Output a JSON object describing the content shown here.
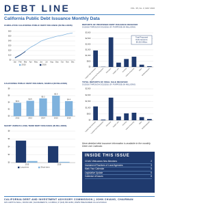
{
  "header": {
    "title": "DEBT LINE",
    "issue": "VOL. 35, No. 3, MAY 2016",
    "headline": "California Public Debt Issuance Monthly Data"
  },
  "chart_data": [
    {
      "type": "line",
      "title": "CUMULATIVE CALIFORNIA PUBLIC DEBT ISSUANCE (IN BILLIONS)",
      "categories": [
        "Jan",
        "Feb",
        "Mar",
        "Apr",
        "May",
        "Jun",
        "Jul",
        "Aug",
        "Sep",
        "Oct",
        "Nov",
        "Dec"
      ],
      "series": [
        {
          "name": "2015",
          "color": "#7fb2dd",
          "values": [
            4,
            10,
            19,
            27,
            33,
            40,
            44,
            47,
            50,
            52,
            55,
            57
          ]
        },
        {
          "name": "2016",
          "color": "#1f3a6e",
          "values": [
            5,
            11,
            18,
            null,
            null,
            null,
            null,
            null,
            null,
            null,
            null,
            null
          ]
        }
      ],
      "ylim": [
        0,
        60
      ],
      "yticks": [
        {
          "value": 0,
          "label": "$0"
        },
        {
          "value": 10,
          "label": "$10"
        },
        {
          "value": 20,
          "label": "$20"
        },
        {
          "value": 30,
          "label": "$30"
        },
        {
          "value": 40,
          "label": "$40"
        },
        {
          "value": 50,
          "label": "$50"
        },
        {
          "value": 60,
          "label": "$60"
        }
      ],
      "grid": true
    },
    {
      "type": "bar",
      "title": "REPORTS OF PROPOSED DEBT ISSUANCE RECEIVED",
      "subtitle": "3/1/2016 THROUGH 3/31/2016, BY PURPOSE (IN MILLIONS)",
      "categories": [
        "Capital Improvements",
        "Commercial Development",
        "Education",
        "Health Care",
        "Housing",
        "Interim Financing",
        "Other",
        "Redevelopment"
      ],
      "values": [
        1450,
        20,
        2600,
        380,
        700,
        900,
        200,
        60
      ],
      "color": "#1f3a6e",
      "ylim": [
        0,
        3000
      ],
      "yticks": [
        {
          "value": 0,
          "label": "$0"
        },
        {
          "value": 500,
          "label": "$500"
        },
        {
          "value": 1000,
          "label": "$1,000"
        },
        {
          "value": 1500,
          "label": "$1,500"
        },
        {
          "value": 2000,
          "label": "$2,000"
        },
        {
          "value": 2500,
          "label": "$2,500"
        },
        {
          "value": 3000,
          "label": "$3,000"
        }
      ],
      "grid": true,
      "xtick_rotation": 45,
      "annotation": [
        "Total Proposed",
        "Debt Issuance",
        "$6,315 Million"
      ]
    },
    {
      "type": "bar",
      "title": "CALIFORNIA PUBLIC DEBT ISSUANCE, MARCH (IN BILLIONS)",
      "categories": [
        "2012",
        "2013",
        "2014",
        "2015",
        "2016"
      ],
      "values": [
        3.9,
        4.5,
        5.2,
        6.0,
        4.4
      ],
      "value_labels": [
        "$3.9",
        "$4.5",
        "$5.2",
        "$6.0",
        "$4.4"
      ],
      "color": "#7fb2dd",
      "ylim": [
        0,
        8
      ],
      "yticks": [
        {
          "value": 0,
          "label": "$0"
        },
        {
          "value": 2,
          "label": "$2"
        },
        {
          "value": 4,
          "label": "$4"
        },
        {
          "value": 6,
          "label": "$6"
        },
        {
          "value": 8,
          "label": "$8"
        }
      ],
      "grid": true
    },
    {
      "type": "bar",
      "title": "TOTAL REPORTS OF FINAL SALE RECEIVED",
      "subtitle": "3/1/2016 THROUGH 3/31/2016, BY PURPOSE (IN MILLIONS)",
      "categories": [
        "Capital Improvements",
        "Commercial Development",
        "Education",
        "Health Care",
        "Housing",
        "Interim Financing",
        "Other",
        "Redevelopment"
      ],
      "values": [
        1100,
        50,
        1800,
        300,
        550,
        600,
        250,
        100
      ],
      "color": "#1f3a6e",
      "ylim": [
        0,
        2500
      ],
      "yticks": [
        {
          "value": 0,
          "label": "$0"
        },
        {
          "value": 500,
          "label": "$500"
        },
        {
          "value": 1000,
          "label": "$1,000"
        },
        {
          "value": 1500,
          "label": "$1,500"
        },
        {
          "value": 2000,
          "label": "$2,000"
        },
        {
          "value": 2500,
          "label": "$2,500"
        }
      ],
      "grid": true,
      "xtick_rotation": 45
    },
    {
      "type": "bar",
      "title": "SHORT VERSUS LONG-TERM DEBT ISSUANCE (IN BILLIONS)",
      "categories": [
        "2015",
        "2016"
      ],
      "series": [
        {
          "name": "Long-term",
          "color": "#1f3a6e",
          "values": [
            5.6,
            4.2
          ]
        },
        {
          "name": "Short-term",
          "color": "#7fb2dd",
          "values": [
            0.4,
            0.2
          ]
        }
      ],
      "ylim": [
        0,
        8
      ],
      "yticks": [
        {
          "value": 0,
          "label": "$0"
        },
        {
          "value": 2,
          "label": "$2"
        },
        {
          "value": 4,
          "label": "$4"
        },
        {
          "value": 6,
          "label": "$6"
        },
        {
          "value": 8,
          "label": "$8"
        }
      ],
      "grid": true
    }
  ],
  "note": "More detailed debt issuance information is available in the monthly Debt Line Calendar.",
  "inside": {
    "title": "INSIDE THIS ISSUE",
    "items": [
      {
        "label": "CDIAC Welcomes New Members",
        "page": "2"
      },
      {
        "label": "Investment Practices of Local Agencies",
        "page": "3"
      },
      {
        "label": "Mark Your Calendar",
        "page": "5"
      },
      {
        "label": "Legislative Update",
        "page": "6"
      },
      {
        "label": "Calendar of Issues",
        "page": "8"
      }
    ]
  },
  "footer": {
    "line1": "CALIFORNIA DEBT AND INVESTMENT ADVISORY COMMISSION | JOHN CHIANG, CHAIRMAN",
    "line2": "915 CAPITOL MALL, ROOM 400 | SACRAMENTO, CA 95814 | P (916) 653-3269 | WWW.TREASURER.CA.GOV/CDIAC"
  }
}
